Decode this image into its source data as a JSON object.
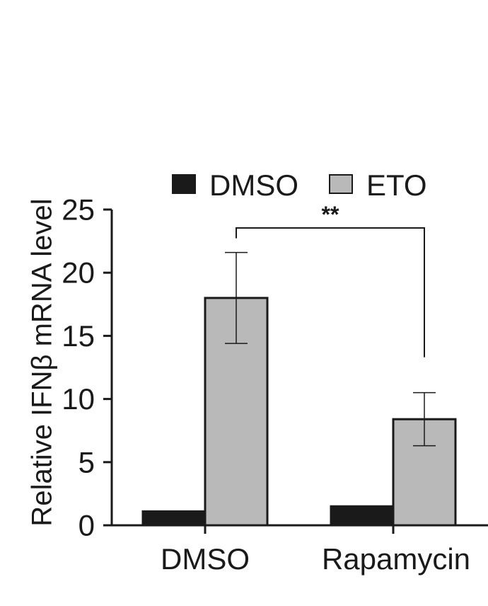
{
  "chart_data": {
    "type": "bar",
    "ylabel": "Relative IFNβ mRNA level",
    "ylim": [
      0,
      25
    ],
    "yticks": [
      0,
      5,
      10,
      15,
      20,
      25
    ],
    "categories": [
      "DMSO",
      "Rapamycin"
    ],
    "series": [
      {
        "name": "DMSO",
        "color": "#1a1a1a",
        "values": [
          1.1,
          1.5
        ],
        "errors": [
          0,
          0
        ]
      },
      {
        "name": "ETO",
        "color": "#b9b9b9",
        "values": [
          18.0,
          8.4
        ],
        "errors": [
          3.6,
          2.1
        ]
      }
    ],
    "legend_position": "top",
    "significance": {
      "label": "**",
      "between": [
        [
          0,
          1
        ],
        [
          1,
          1
        ]
      ]
    },
    "grid": false
  }
}
